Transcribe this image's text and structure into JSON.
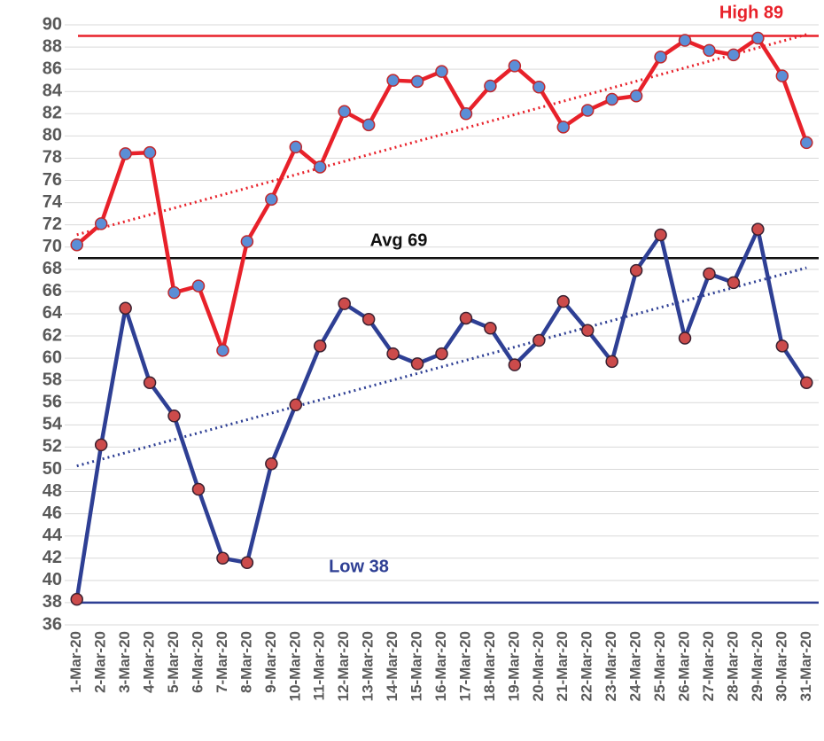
{
  "chart_data": {
    "type": "line",
    "categories": [
      "1-Mar-20",
      "2-Mar-20",
      "3-Mar-20",
      "4-Mar-20",
      "5-Mar-20",
      "6-Mar-20",
      "7-Mar-20",
      "8-Mar-20",
      "9-Mar-20",
      "10-Mar-20",
      "11-Mar-20",
      "12-Mar-20",
      "13-Mar-20",
      "14-Mar-20",
      "15-Mar-20",
      "16-Mar-20",
      "17-Mar-20",
      "18-Mar-20",
      "19-Mar-20",
      "20-Mar-20",
      "21-Mar-20",
      "22-Mar-20",
      "23-Mar-20",
      "24-Mar-20",
      "25-Mar-20",
      "26-Mar-20",
      "27-Mar-20",
      "28-Mar-20",
      "29-Mar-20",
      "30-Mar-20",
      "31-Mar-20"
    ],
    "series": [
      {
        "color": "#e8212a",
        "marker_color": "#5b8ed6",
        "marker_edge": "#c0282d",
        "trendline": true,
        "values": [
          70.2,
          72.1,
          78.4,
          78.5,
          65.9,
          66.5,
          60.7,
          70.5,
          74.3,
          79.0,
          77.2,
          82.2,
          81.0,
          85.0,
          84.9,
          85.8,
          82.0,
          84.5,
          86.3,
          84.4,
          80.8,
          82.3,
          83.3,
          83.6,
          87.1,
          88.6,
          87.7,
          87.3,
          88.8,
          85.4,
          79.4
        ]
      },
      {
        "color": "#2e3f94",
        "marker_color": "#cc4b4b",
        "marker_edge": "#3a2030",
        "trendline": true,
        "values": [
          38.3,
          52.2,
          64.5,
          57.8,
          54.8,
          48.2,
          42.0,
          41.6,
          50.5,
          55.8,
          61.1,
          64.9,
          63.5,
          60.4,
          59.5,
          60.4,
          63.6,
          62.7,
          59.4,
          61.6,
          65.1,
          62.5,
          59.7,
          67.9,
          71.1,
          61.8,
          67.6,
          66.8,
          71.6,
          61.1,
          57.8
        ]
      }
    ],
    "reference_lines": [
      {
        "label": "High 89",
        "value": 89,
        "color": "#e8212a"
      },
      {
        "label": "Avg 69",
        "value": 69,
        "color": "#111111"
      },
      {
        "label": "Low 38",
        "value": 38,
        "color": "#2e3f94"
      }
    ],
    "ylim": [
      36,
      90
    ],
    "yticks": [
      36,
      38,
      40,
      42,
      44,
      46,
      48,
      50,
      52,
      54,
      56,
      58,
      60,
      62,
      64,
      66,
      68,
      70,
      72,
      74,
      76,
      78,
      80,
      82,
      84,
      86,
      88,
      90
    ],
    "grid": true
  }
}
